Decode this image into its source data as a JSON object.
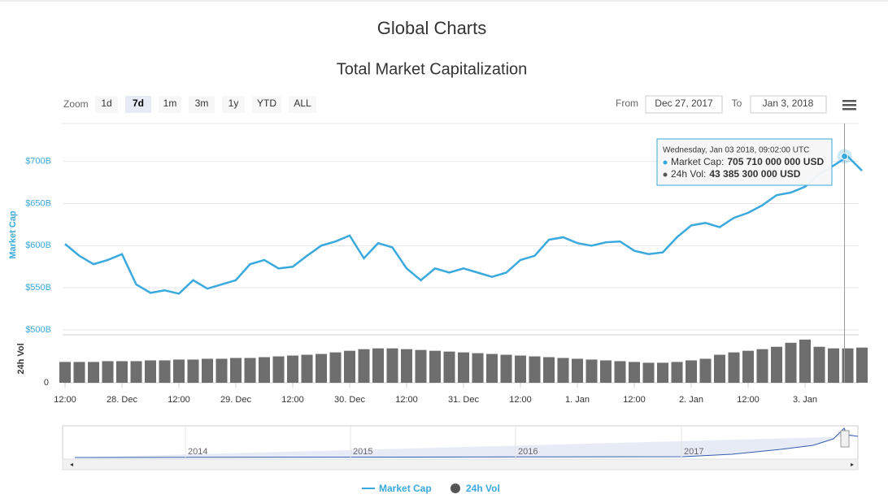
{
  "chart_data": {
    "type": "line",
    "title": "Global Charts",
    "subtitle": "Total Market Capitalization",
    "categories": [
      "12:00",
      null,
      null,
      null,
      "28. Dec",
      null,
      null,
      null,
      "12:00",
      null,
      null,
      null,
      "29. Dec",
      null,
      null,
      null,
      "12:00",
      null,
      null,
      null,
      "30. Dec",
      null,
      null,
      null,
      "12:00",
      null,
      null,
      null,
      "31. Dec",
      null,
      null,
      null,
      "12:00",
      null,
      null,
      null,
      "1. Jan",
      null,
      null,
      null,
      "12:00",
      null,
      null,
      null,
      "2. Jan",
      null,
      null,
      null,
      "12:00",
      null,
      null,
      null,
      "3. Jan",
      null,
      null,
      null,
      null
    ],
    "series": [
      {
        "name": "Market Cap",
        "color": "#3aa9de",
        "axis": "y",
        "values": [
          602,
          588,
          578,
          583,
          590,
          554,
          544,
          547,
          543,
          559,
          549,
          554,
          559,
          578,
          583,
          573,
          575,
          588,
          600,
          605,
          612,
          585,
          603,
          598,
          573,
          559,
          573,
          568,
          573,
          568,
          563,
          568,
          583,
          588,
          607,
          610,
          603,
          600,
          604,
          605,
          594,
          590,
          592,
          610,
          624,
          627,
          622,
          633,
          639,
          648,
          660,
          663,
          670,
          685,
          695,
          706,
          689
        ]
      },
      {
        "name": "24h Vol",
        "color": "#555555",
        "axis": "y2",
        "type": "bar",
        "values": [
          26,
          26,
          26,
          27,
          27,
          27,
          28,
          28,
          29,
          29,
          30,
          30,
          31,
          31,
          32,
          33,
          34,
          35,
          36,
          38,
          40,
          42,
          43,
          43,
          42,
          41,
          40,
          39,
          38,
          37,
          36,
          35,
          34,
          33,
          32,
          31,
          30,
          29,
          28,
          27,
          26,
          25,
          25,
          26,
          28,
          30,
          35,
          38,
          40,
          42,
          45,
          50,
          54,
          45,
          43,
          43,
          44
        ]
      }
    ],
    "ylim": [
      500,
      745
    ],
    "yticks": [
      {
        "value": 500,
        "label": "$500B"
      },
      {
        "value": 550,
        "label": "$550B"
      },
      {
        "value": 600,
        "label": "$600B"
      },
      {
        "value": 650,
        "label": "$650B"
      },
      {
        "value": 700,
        "label": "$700B"
      }
    ],
    "y_label": "Market Cap",
    "y2lim": [
      0,
      60
    ],
    "y2ticks": [
      0
    ],
    "y2_label": "24h Vol",
    "grid": true,
    "tooltip": {
      "date": "Wednesday, Jan 03 2018, 09:02:00 UTC",
      "label1": "Market Cap:",
      "value1": "705 710 000 000 USD",
      "label2": "24h Vol:",
      "value2": "43 385 300 000 USD"
    }
  },
  "controls": {
    "zoom_label": "Zoom",
    "zoom_buttons": [
      "1d",
      "7d",
      "1m",
      "3m",
      "1y",
      "YTD",
      "ALL"
    ],
    "from_label": "From",
    "from_date": "Dec 27, 2017",
    "to_label": "To",
    "to_date": "Jan 3, 2018"
  },
  "navigator": {
    "labels": [
      "2014",
      "2015",
      "2016",
      "2017"
    ]
  }
}
